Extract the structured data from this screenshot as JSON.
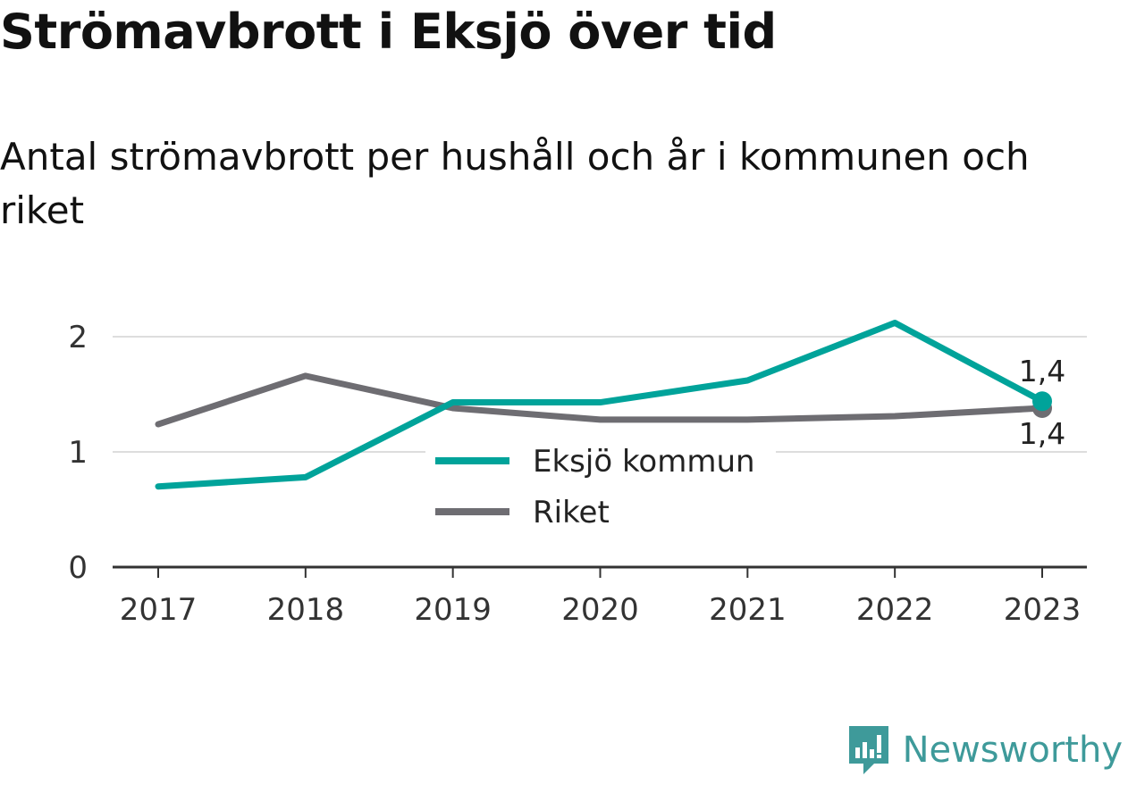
{
  "chart_data": {
    "type": "line",
    "title": "Strömavbrott i Eksjö över tid",
    "subtitle": "Antal strömavbrott per hushåll och år i kommunen och riket",
    "categories": [
      "2017",
      "2018",
      "2019",
      "2020",
      "2021",
      "2022",
      "2023"
    ],
    "series": [
      {
        "name": "Eksjö kommun",
        "color": "#00a39a",
        "values": [
          0.7,
          0.78,
          1.43,
          1.43,
          1.62,
          2.12,
          1.44
        ],
        "end_label": "1,4"
      },
      {
        "name": "Riket",
        "color": "#6e6d72",
        "values": [
          1.24,
          1.66,
          1.38,
          1.28,
          1.28,
          1.31,
          1.38
        ],
        "end_label": "1,4"
      }
    ],
    "yticks": [
      "0",
      "1",
      "2"
    ],
    "ylim": [
      0,
      2.2
    ],
    "grid": true,
    "legend_position": "center"
  },
  "branding": {
    "name": "Newsworthy",
    "color": "#3e9a9a"
  }
}
